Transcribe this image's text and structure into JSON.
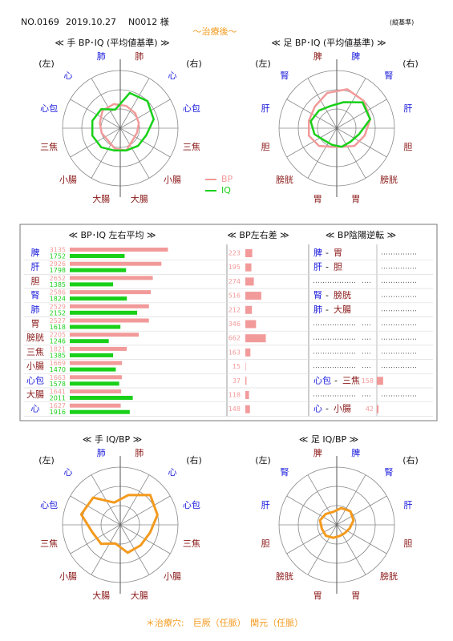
{
  "header": {
    "no": "NO.0169",
    "date": "2019.10.27",
    "patient": "N0012 様",
    "basis": "(縦基準)",
    "subtitle": "〜治療後〜"
  },
  "chart_data": [
    {
      "type": "radar",
      "title": "≪ 手 BP･IQ (平均値基準) ≫",
      "left_label": "(左)",
      "right_label": "(右)",
      "axes": [
        "肺",
        "心",
        "心包",
        "三焦",
        "小腸",
        "大腸",
        "大腸",
        "小腸",
        "三焦",
        "心包",
        "心",
        "肺"
      ],
      "axis_colors": [
        "#8b1a1a",
        "#1a1adc",
        "#1a1adc",
        "#8b1a1a",
        "#8b1a1a",
        "#8b1a1a",
        "#8b1a1a",
        "#8b1a1a",
        "#8b1a1a",
        "#1a1adc",
        "#1a1adc",
        "#1a1adc"
      ],
      "rlim": [
        0,
        3
      ],
      "rings": [
        1,
        2,
        3
      ],
      "series": [
        {
          "name": "BP",
          "color": "#f29a9a",
          "values": [
            1.2,
            1.1,
            1.0,
            0.9,
            0.9,
            1.2,
            1.1,
            0.9,
            1.0,
            1.1,
            1.3,
            1.3
          ]
        },
        {
          "name": "IQ",
          "color": "#19d019",
          "values": [
            1.9,
            2.0,
            1.8,
            1.4,
            1.3,
            1.2,
            1.2,
            1.4,
            1.5,
            1.5,
            1.4,
            1.0
          ]
        }
      ]
    },
    {
      "type": "radar",
      "title": "≪ 足 BP･IQ (平均値基準) ≫",
      "left_label": "(左)",
      "right_label": "(右)",
      "axes": [
        "脾",
        "腎",
        "肝",
        "胆",
        "膀胱",
        "胃",
        "胃",
        "膀胱",
        "胆",
        "肝",
        "腎",
        "脾"
      ],
      "axis_colors": [
        "#1a1adc",
        "#1a1adc",
        "#1a1adc",
        "#8b1a1a",
        "#8b1a1a",
        "#8b1a1a",
        "#8b1a1a",
        "#8b1a1a",
        "#8b1a1a",
        "#1a1adc",
        "#1a1adc",
        "#8b1a1a"
      ],
      "rlim": [
        0,
        3
      ],
      "rings": [
        1,
        2,
        3
      ],
      "series": [
        {
          "color": "#f29a9a",
          "values": [
            2.1,
            2.0,
            1.8,
            1.5,
            1.3,
            1.0,
            1.0,
            1.3,
            1.5,
            1.5,
            1.6,
            1.9
          ]
        },
        {
          "color": "#19d019",
          "values": [
            1.4,
            1.9,
            1.8,
            1.2,
            1.0,
            1.0,
            0.9,
            0.9,
            1.2,
            1.4,
            1.3,
            1.2
          ]
        }
      ]
    },
    {
      "type": "radar",
      "title": "≪ 手 IQ/BP ≫",
      "left_label": "(左)",
      "right_label": "(右)",
      "axes": [
        "肺",
        "心",
        "心包",
        "三焦",
        "小腸",
        "大腸",
        "大腸",
        "小腸",
        "三焦",
        "心包",
        "心",
        "肺"
      ],
      "axis_colors": [
        "#8b1a1a",
        "#1a1adc",
        "#1a1adc",
        "#8b1a1a",
        "#8b1a1a",
        "#8b1a1a",
        "#8b1a1a",
        "#8b1a1a",
        "#8b1a1a",
        "#1a1adc",
        "#1a1adc",
        "#1a1adc"
      ],
      "rlim": [
        0,
        3
      ],
      "rings": [
        1,
        2,
        3
      ],
      "series": [
        {
          "color": "#f39a1e",
          "values": [
            1.6,
            2.2,
            2.0,
            1.6,
            1.5,
            1.5,
            1.0,
            1.4,
            1.5,
            2.1,
            2.0,
            1.2
          ]
        }
      ]
    },
    {
      "type": "radar",
      "title": "≪ 足 IQ/BP ≫",
      "left_label": "(左)",
      "right_label": "(右)",
      "axes": [
        "脾",
        "腎",
        "肝",
        "胆",
        "膀胱",
        "胃",
        "胃",
        "膀胱",
        "胆",
        "肝",
        "腎",
        "脾"
      ],
      "axis_colors": [
        "#1a1adc",
        "#1a1adc",
        "#1a1adc",
        "#8b1a1a",
        "#8b1a1a",
        "#8b1a1a",
        "#8b1a1a",
        "#8b1a1a",
        "#8b1a1a",
        "#1a1adc",
        "#1a1adc",
        "#8b1a1a"
      ],
      "rlim": [
        0,
        3
      ],
      "rings": [
        1,
        2,
        3
      ],
      "series": [
        {
          "color": "#f39a1e",
          "values": [
            0.9,
            1.0,
            0.9,
            0.7,
            0.6,
            0.6,
            0.7,
            0.8,
            0.8,
            0.9,
            0.8,
            0.7
          ]
        }
      ]
    }
  ],
  "table": {
    "headers": [
      "≪ BP･IQ 左右平均 ≫",
      "≪ BP左右差 ≫",
      "≪ BP陰陽逆転 ≫"
    ],
    "bp_color": "#f29a9a",
    "iq_color": "#19d019",
    "yin_color": "#1a1adc",
    "yang_color": "#8b1a1a",
    "bar_xlim": [
      0,
      3200
    ],
    "diff_xlim": [
      0,
      700
    ],
    "rev_xlim": [
      0,
      500
    ],
    "reversal_sep": "-",
    "rows": [
      {
        "organ": "脾",
        "color": "#1a1adc",
        "bp": 3135,
        "iq": 1752,
        "diff": 223,
        "reversal": {
          "yin": "脾",
          "yang": "胃"
        }
      },
      {
        "organ": "肝",
        "color": "#1a1adc",
        "bp": 2926,
        "iq": 1798,
        "diff": 195,
        "reversal": {
          "yin": "肝",
          "yang": "胆"
        }
      },
      {
        "organ": "胆",
        "color": "#8b1a1a",
        "bp": 2652,
        "iq": 1385,
        "diff": 274
      },
      {
        "organ": "腎",
        "color": "#1a1adc",
        "bp": 2586,
        "iq": 1824,
        "diff": 516,
        "reversal": {
          "yin": "腎",
          "yang": "膀胱"
        }
      },
      {
        "organ": "肺",
        "color": "#1a1adc",
        "bp": 2529,
        "iq": 2152,
        "diff": 212,
        "reversal": {
          "yin": "肺",
          "yang": "大腸"
        }
      },
      {
        "organ": "胃",
        "color": "#8b1a1a",
        "bp": 2527,
        "iq": 1618,
        "diff": 346
      },
      {
        "organ": "膀胱",
        "color": "#8b1a1a",
        "bp": 2205,
        "iq": 1246,
        "diff": 662
      },
      {
        "organ": "三焦",
        "color": "#8b1a1a",
        "bp": 1821,
        "iq": 1385,
        "diff": 163
      },
      {
        "organ": "小腸",
        "color": "#8b1a1a",
        "bp": 1669,
        "iq": 1470,
        "diff": 15
      },
      {
        "organ": "心包",
        "color": "#1a1adc",
        "bp": 1663,
        "iq": 1578,
        "diff": 37,
        "reversal": {
          "yin": "心包",
          "yang": "三焦",
          "value": 158
        }
      },
      {
        "organ": "大腸",
        "color": "#8b1a1a",
        "bp": 1641,
        "iq": 2011,
        "diff": 118
      },
      {
        "organ": "心",
        "color": "#1a1adc",
        "bp": 1627,
        "iq": 1916,
        "diff": 148,
        "reversal": {
          "yin": "心",
          "yang": "小腸",
          "value": 42
        }
      }
    ]
  },
  "footer": "＊治療穴:　巨厥（任脈）　関元（任脈）"
}
